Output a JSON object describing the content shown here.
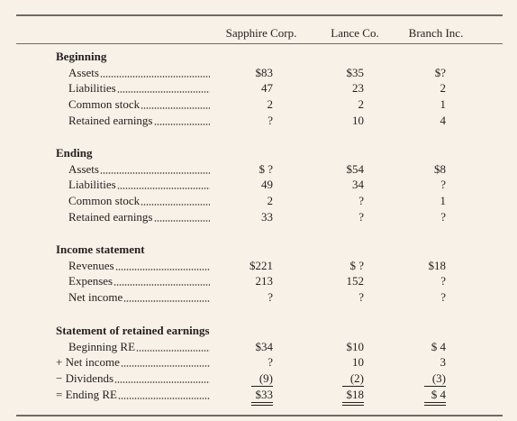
{
  "header": {
    "columns": [
      "Sapphire Corp.",
      "Lance Co.",
      "Branch Inc."
    ]
  },
  "sections": [
    {
      "title": "Beginning",
      "rows": [
        {
          "label": "Assets",
          "values": [
            "$83",
            "$35",
            "$?"
          ]
        },
        {
          "label": "Liabilities",
          "values": [
            "47",
            "23",
            "2"
          ]
        },
        {
          "label": "Common stock",
          "values": [
            "2",
            "2",
            "1"
          ]
        },
        {
          "label": "Retained earnings",
          "values": [
            "?",
            "10",
            "4"
          ]
        }
      ]
    },
    {
      "title": "Ending",
      "rows": [
        {
          "label": "Assets",
          "values": [
            "$ ?",
            "$54",
            "$8"
          ]
        },
        {
          "label": "Liabilities",
          "values": [
            "49",
            "34",
            "?"
          ]
        },
        {
          "label": "Common stock",
          "values": [
            "2",
            "?",
            "1"
          ]
        },
        {
          "label": "Retained earnings",
          "values": [
            "33",
            "?",
            "?"
          ]
        }
      ]
    },
    {
      "title": "Income statement",
      "rows": [
        {
          "label": "Revenues",
          "values": [
            "$221",
            "$ ?",
            "$18"
          ]
        },
        {
          "label": "Expenses",
          "values": [
            "213",
            "152",
            "?"
          ]
        },
        {
          "label": "Net income",
          "values": [
            "?",
            "?",
            "?"
          ]
        }
      ]
    },
    {
      "title": "Statement of retained earnings",
      "rows": [
        {
          "label": "Beginning RE",
          "values": [
            "$34",
            "$10",
            "$ 4"
          ]
        },
        {
          "label": "+ Net income",
          "values": [
            "?",
            "10",
            "3"
          ]
        },
        {
          "label": "− Dividends",
          "values": [
            "(9)",
            "(2)",
            "(3)"
          ]
        },
        {
          "label": "= Ending RE",
          "values": [
            "$33",
            "$18",
            "$ 4"
          ]
        }
      ]
    }
  ]
}
